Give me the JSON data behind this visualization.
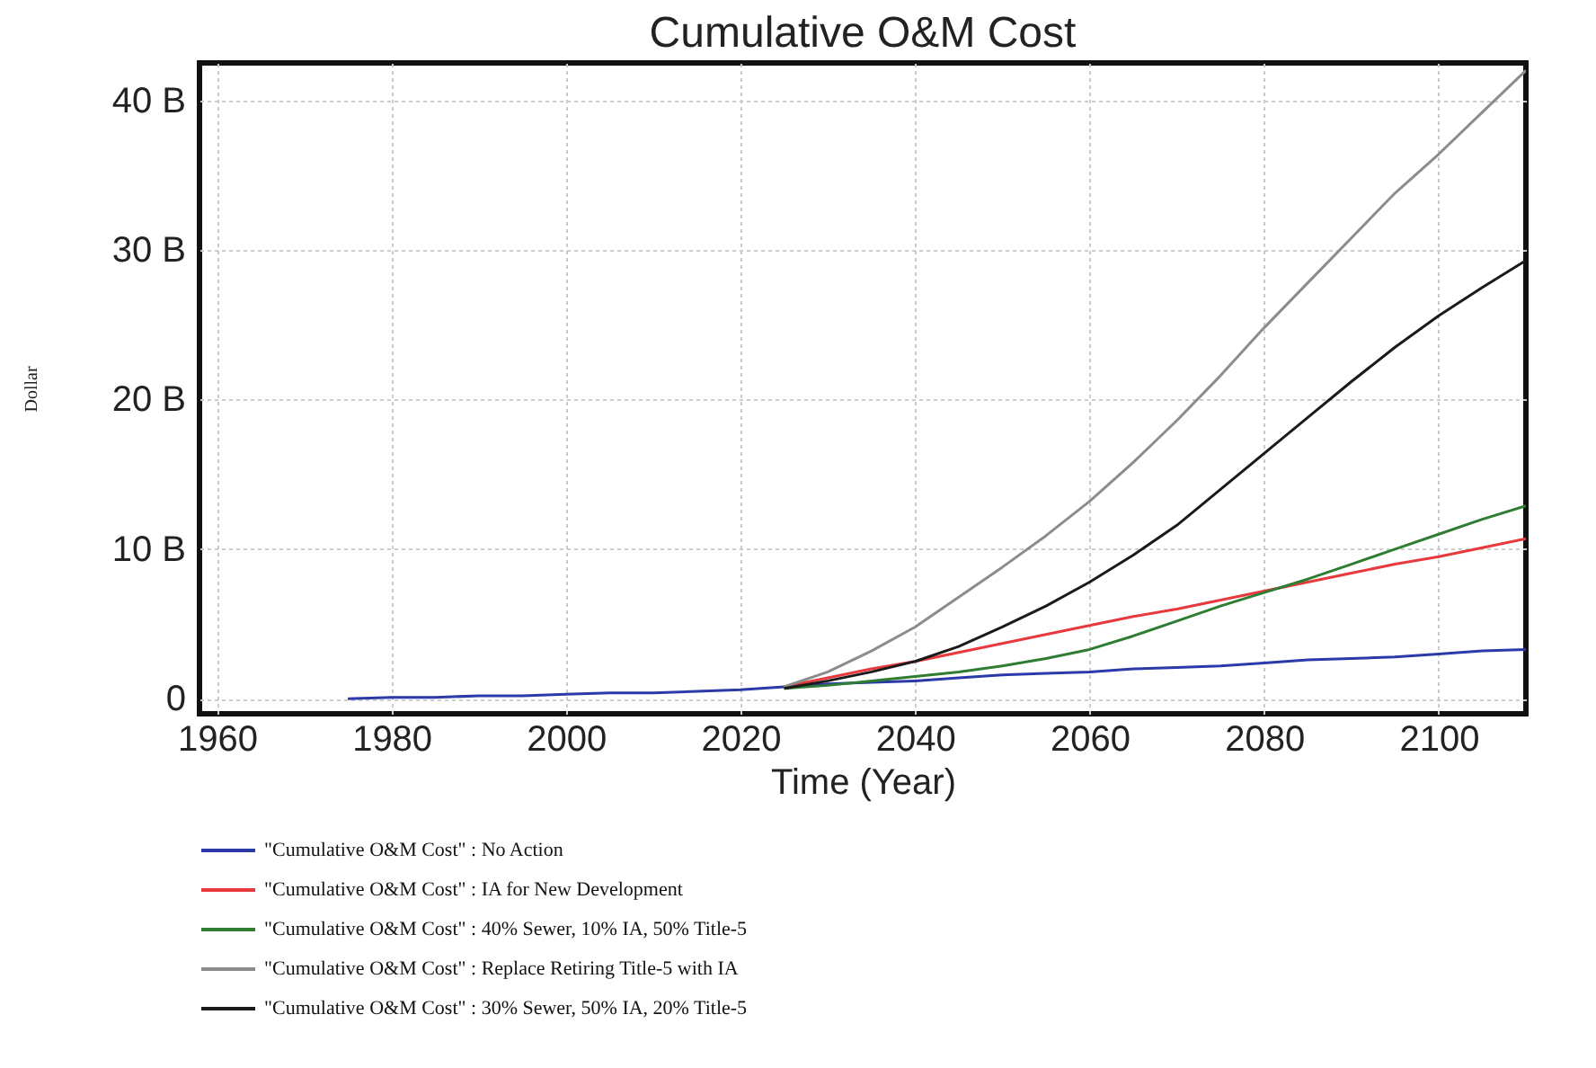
{
  "chart_data": {
    "type": "line",
    "title": "Cumulative O&M Cost",
    "xlabel": "Time (Year)",
    "ylabel": "Dollar",
    "xlim": [
      1958,
      2110
    ],
    "xticks": [
      1960,
      1980,
      2000,
      2020,
      2040,
      2060,
      2080,
      2100
    ],
    "ylim": [
      -1,
      42.5
    ],
    "yticks": [
      {
        "value": 0,
        "label": "0"
      },
      {
        "value": 10,
        "label": "10 B"
      },
      {
        "value": 20,
        "label": "20 B"
      },
      {
        "value": 30,
        "label": "30 B"
      },
      {
        "value": 40,
        "label": "40 B"
      }
    ],
    "grid": true,
    "legend": "bottom",
    "marker": "none",
    "line_style": "solid",
    "x": [
      1975,
      1980,
      1985,
      1990,
      1995,
      2000,
      2005,
      2010,
      2015,
      2020,
      2025,
      2030,
      2035,
      2040,
      2045,
      2050,
      2055,
      2060,
      2065,
      2070,
      2075,
      2080,
      2085,
      2090,
      2095,
      2100,
      2105,
      2110
    ],
    "series": [
      {
        "name": "\"Cumulative O&M Cost\" : No Action",
        "color": "#2b3aa8",
        "values": [
          0,
          0.1,
          0.1,
          0.2,
          0.2,
          0.3,
          0.4,
          0.4,
          0.5,
          0.6,
          0.8,
          1.0,
          1.1,
          1.2,
          1.4,
          1.6,
          1.7,
          1.8,
          2.0,
          2.1,
          2.2,
          2.4,
          2.6,
          2.7,
          2.8,
          3.0,
          3.2,
          3.3
        ]
      },
      {
        "name": "\"Cumulative O&M Cost\" : IA for New Development",
        "color": "#e8393c",
        "values": [
          null,
          null,
          null,
          null,
          null,
          null,
          null,
          null,
          null,
          null,
          0.8,
          1.4,
          2.0,
          2.5,
          3.1,
          3.7,
          4.3,
          4.9,
          5.5,
          6.0,
          6.6,
          7.2,
          7.8,
          8.4,
          9.0,
          9.5,
          10.1,
          10.7
        ]
      },
      {
        "name": "\"Cumulative O&M Cost\" : 40% Sewer, 10% IA, 50% Title-5",
        "color": "#2e7d32",
        "values": [
          null,
          null,
          null,
          null,
          null,
          null,
          null,
          null,
          null,
          null,
          0.7,
          0.9,
          1.2,
          1.5,
          1.8,
          2.2,
          2.7,
          3.3,
          4.2,
          5.2,
          6.2,
          7.1,
          8.0,
          9.0,
          10.0,
          11.0,
          12.0,
          12.9
        ]
      },
      {
        "name": "\"Cumulative O&M Cost\" : Replace Retiring Title-5 with IA",
        "color": "#8c8c8c",
        "values": [
          null,
          null,
          null,
          null,
          null,
          null,
          null,
          null,
          null,
          null,
          0.8,
          1.8,
          3.2,
          4.8,
          6.8,
          8.8,
          10.9,
          13.2,
          15.8,
          18.6,
          21.6,
          24.8,
          27.8,
          30.8,
          33.8,
          36.4,
          39.2,
          42.0
        ]
      },
      {
        "name": "\"Cumulative O&M Cost\" : 30% Sewer, 50% IA, 20% Title-5",
        "color": "#1a1a1a",
        "values": [
          null,
          null,
          null,
          null,
          null,
          null,
          null,
          null,
          null,
          null,
          0.7,
          1.2,
          1.8,
          2.5,
          3.5,
          4.8,
          6.2,
          7.8,
          9.6,
          11.6,
          14.0,
          16.4,
          18.8,
          21.2,
          23.5,
          25.6,
          27.5,
          29.3
        ]
      }
    ]
  }
}
